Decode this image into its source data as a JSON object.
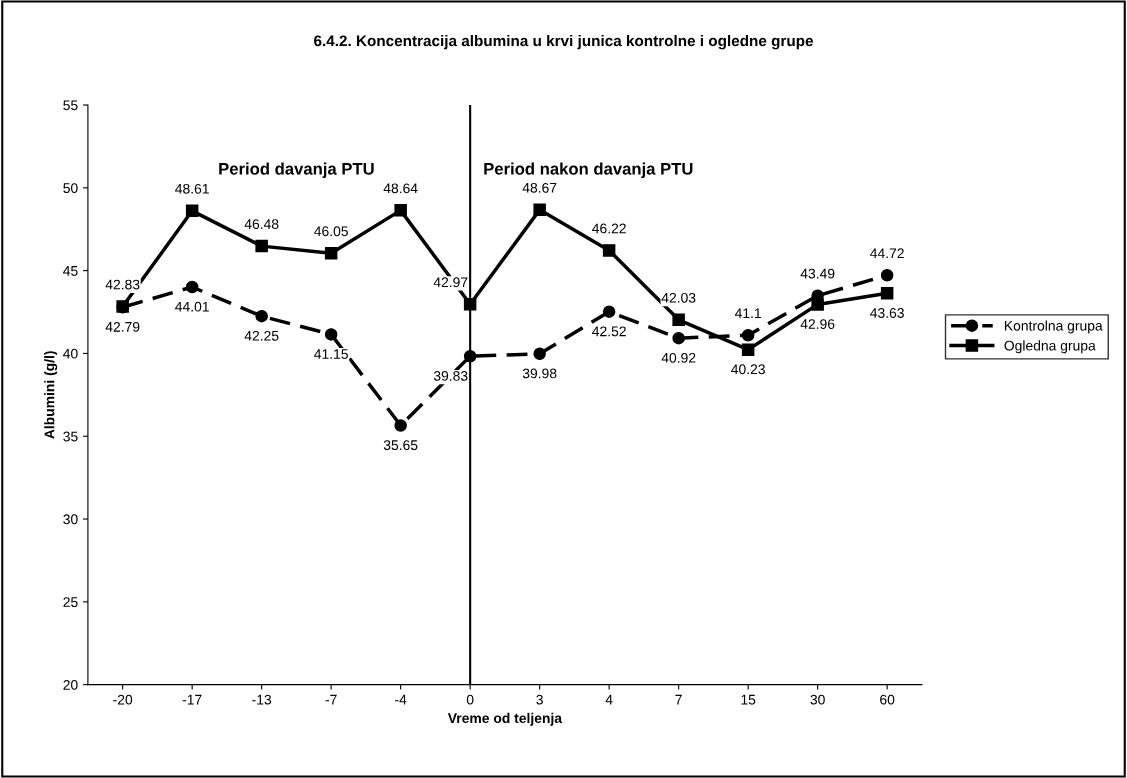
{
  "chart_data": {
    "type": "line",
    "title": "6.4.2. Koncentracija albumina u krvi junica kontrolne i ogledne grupe",
    "xlabel": "Vreme od teljenja",
    "ylabel": "Albumini (g/l)",
    "categories": [
      "-20",
      "-17",
      "-13",
      "-7",
      "-4",
      "0",
      "3",
      "4",
      "7",
      "15",
      "30",
      "60"
    ],
    "series": [
      {
        "name": "Kontrolna grupa",
        "color": "#000000",
        "marker": "circle",
        "line_style": "dashed",
        "values": [
          42.79,
          44.01,
          42.25,
          41.15,
          35.65,
          39.83,
          39.98,
          42.52,
          40.92,
          41.1,
          43.49,
          44.72
        ]
      },
      {
        "name": "Ogledna grupa",
        "color": "#000000",
        "marker": "square",
        "line_style": "solid",
        "values": [
          42.83,
          48.61,
          46.48,
          46.05,
          48.64,
          42.97,
          48.67,
          46.22,
          42.03,
          40.23,
          42.96,
          43.63
        ]
      }
    ],
    "ylim": [
      20,
      55
    ],
    "yticks": [
      20,
      25,
      30,
      35,
      40,
      45,
      50,
      55
    ],
    "ref_lines": [
      {
        "axis": "x",
        "value": "0",
        "color": "#000000"
      }
    ],
    "annotations": [
      "Period davanja PTU",
      "Period nakon davanja PTU"
    ],
    "data_labels": true,
    "legend": "right",
    "grid": false
  }
}
